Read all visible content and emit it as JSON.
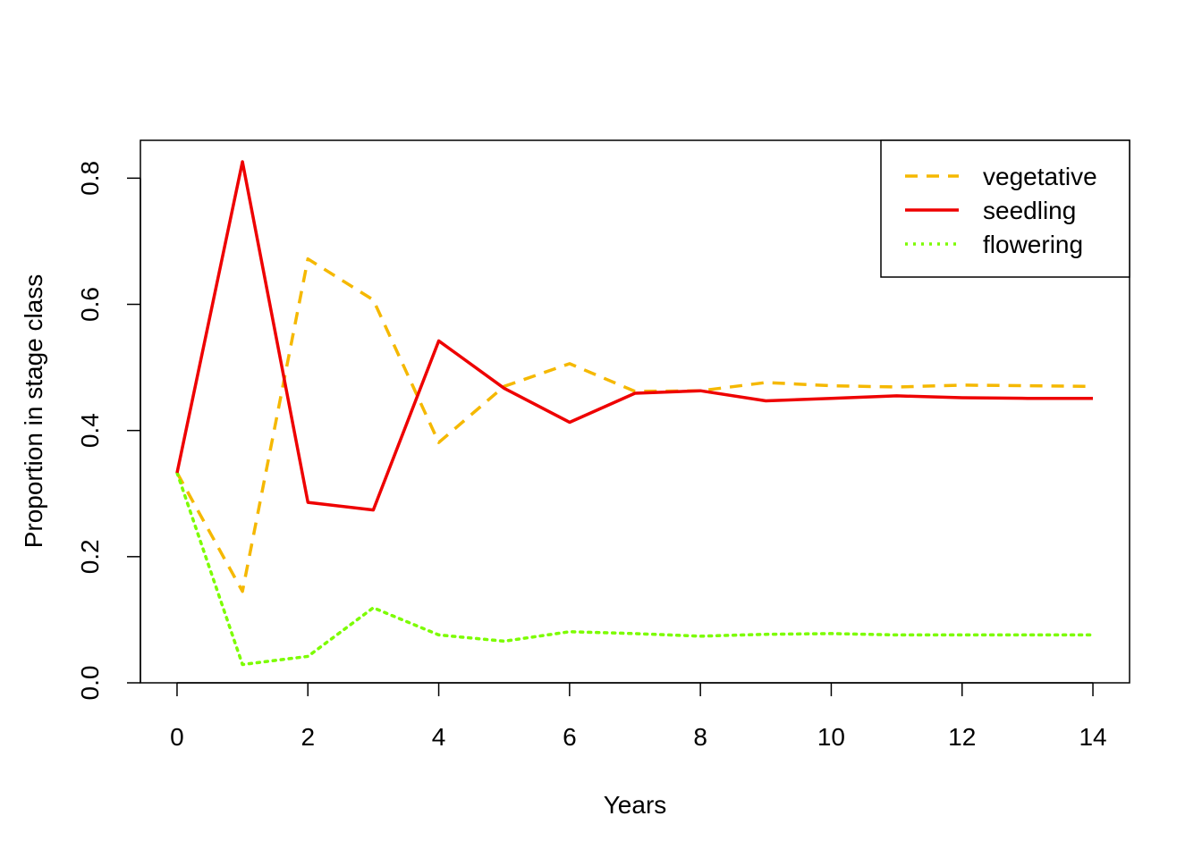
{
  "chart_data": {
    "type": "line",
    "xlabel": "Years",
    "ylabel": "Proportion in stage class",
    "xlim": [
      -0.56,
      14.56
    ],
    "ylim": [
      0,
      0.86
    ],
    "x_ticks": [
      "0",
      "2",
      "4",
      "6",
      "8",
      "10",
      "12",
      "14"
    ],
    "y_ticks": [
      "0.0",
      "0.2",
      "0.4",
      "0.6",
      "0.8"
    ],
    "legend_position": "top-right",
    "x": [
      0,
      1,
      2,
      3,
      4,
      5,
      6,
      7,
      8,
      9,
      10,
      11,
      12,
      13,
      14
    ],
    "series": [
      {
        "name": "vegetative",
        "color": "#F5B800",
        "line_style": "dashed",
        "values": [
          0.333,
          0.145,
          0.672,
          0.607,
          0.381,
          0.47,
          0.506,
          0.462,
          0.463,
          0.476,
          0.471,
          0.469,
          0.472,
          0.471,
          0.47
        ]
      },
      {
        "name": "seedling",
        "color": "#EE0000",
        "line_style": "solid",
        "values": [
          0.333,
          0.826,
          0.286,
          0.274,
          0.542,
          0.467,
          0.413,
          0.459,
          0.463,
          0.447,
          0.451,
          0.455,
          0.452,
          0.451,
          0.451
        ]
      },
      {
        "name": "flowering",
        "color": "#7CFC00",
        "line_style": "dotted",
        "values": [
          0.333,
          0.029,
          0.042,
          0.119,
          0.076,
          0.066,
          0.081,
          0.078,
          0.074,
          0.077,
          0.078,
          0.076,
          0.076,
          0.076,
          0.076
        ]
      }
    ]
  }
}
